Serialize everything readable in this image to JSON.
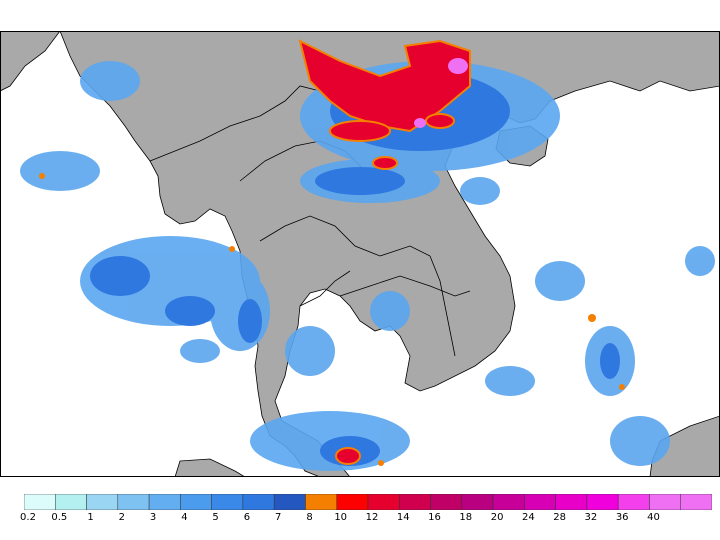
{
  "map": {
    "type": "precipitation-map",
    "region": "Mainland Southeast Asia",
    "land_color": "#a9a9a9",
    "sea_color": "#ffffff",
    "border_color": "#000000"
  },
  "legend": {
    "bins": [
      {
        "label": "0.2",
        "color": "#dcfbfb"
      },
      {
        "label": "0.5",
        "color": "#b4f0f0"
      },
      {
        "label": "1",
        "color": "#9ad6f4"
      },
      {
        "label": "2",
        "color": "#7ec2f2"
      },
      {
        "label": "3",
        "color": "#62aef0"
      },
      {
        "label": "4",
        "color": "#4c9cee"
      },
      {
        "label": "5",
        "color": "#3a88e8"
      },
      {
        "label": "6",
        "color": "#2f78e0"
      },
      {
        "label": "7",
        "color": "#2458c0"
      },
      {
        "label": "8",
        "color": "#f57f00"
      },
      {
        "label": "10",
        "color": "#ff0000"
      },
      {
        "label": "12",
        "color": "#e6002e"
      },
      {
        "label": "14",
        "color": "#d0004e"
      },
      {
        "label": "16",
        "color": "#c00066"
      },
      {
        "label": "18",
        "color": "#b80080"
      },
      {
        "label": "20",
        "color": "#c8009a"
      },
      {
        "label": "24",
        "color": "#d800b4"
      },
      {
        "label": "28",
        "color": "#e800c8"
      },
      {
        "label": "32",
        "color": "#f000dc"
      },
      {
        "label": "36",
        "color": "#f440ec"
      },
      {
        "label": "40",
        "color": "#f070f4"
      }
    ]
  }
}
